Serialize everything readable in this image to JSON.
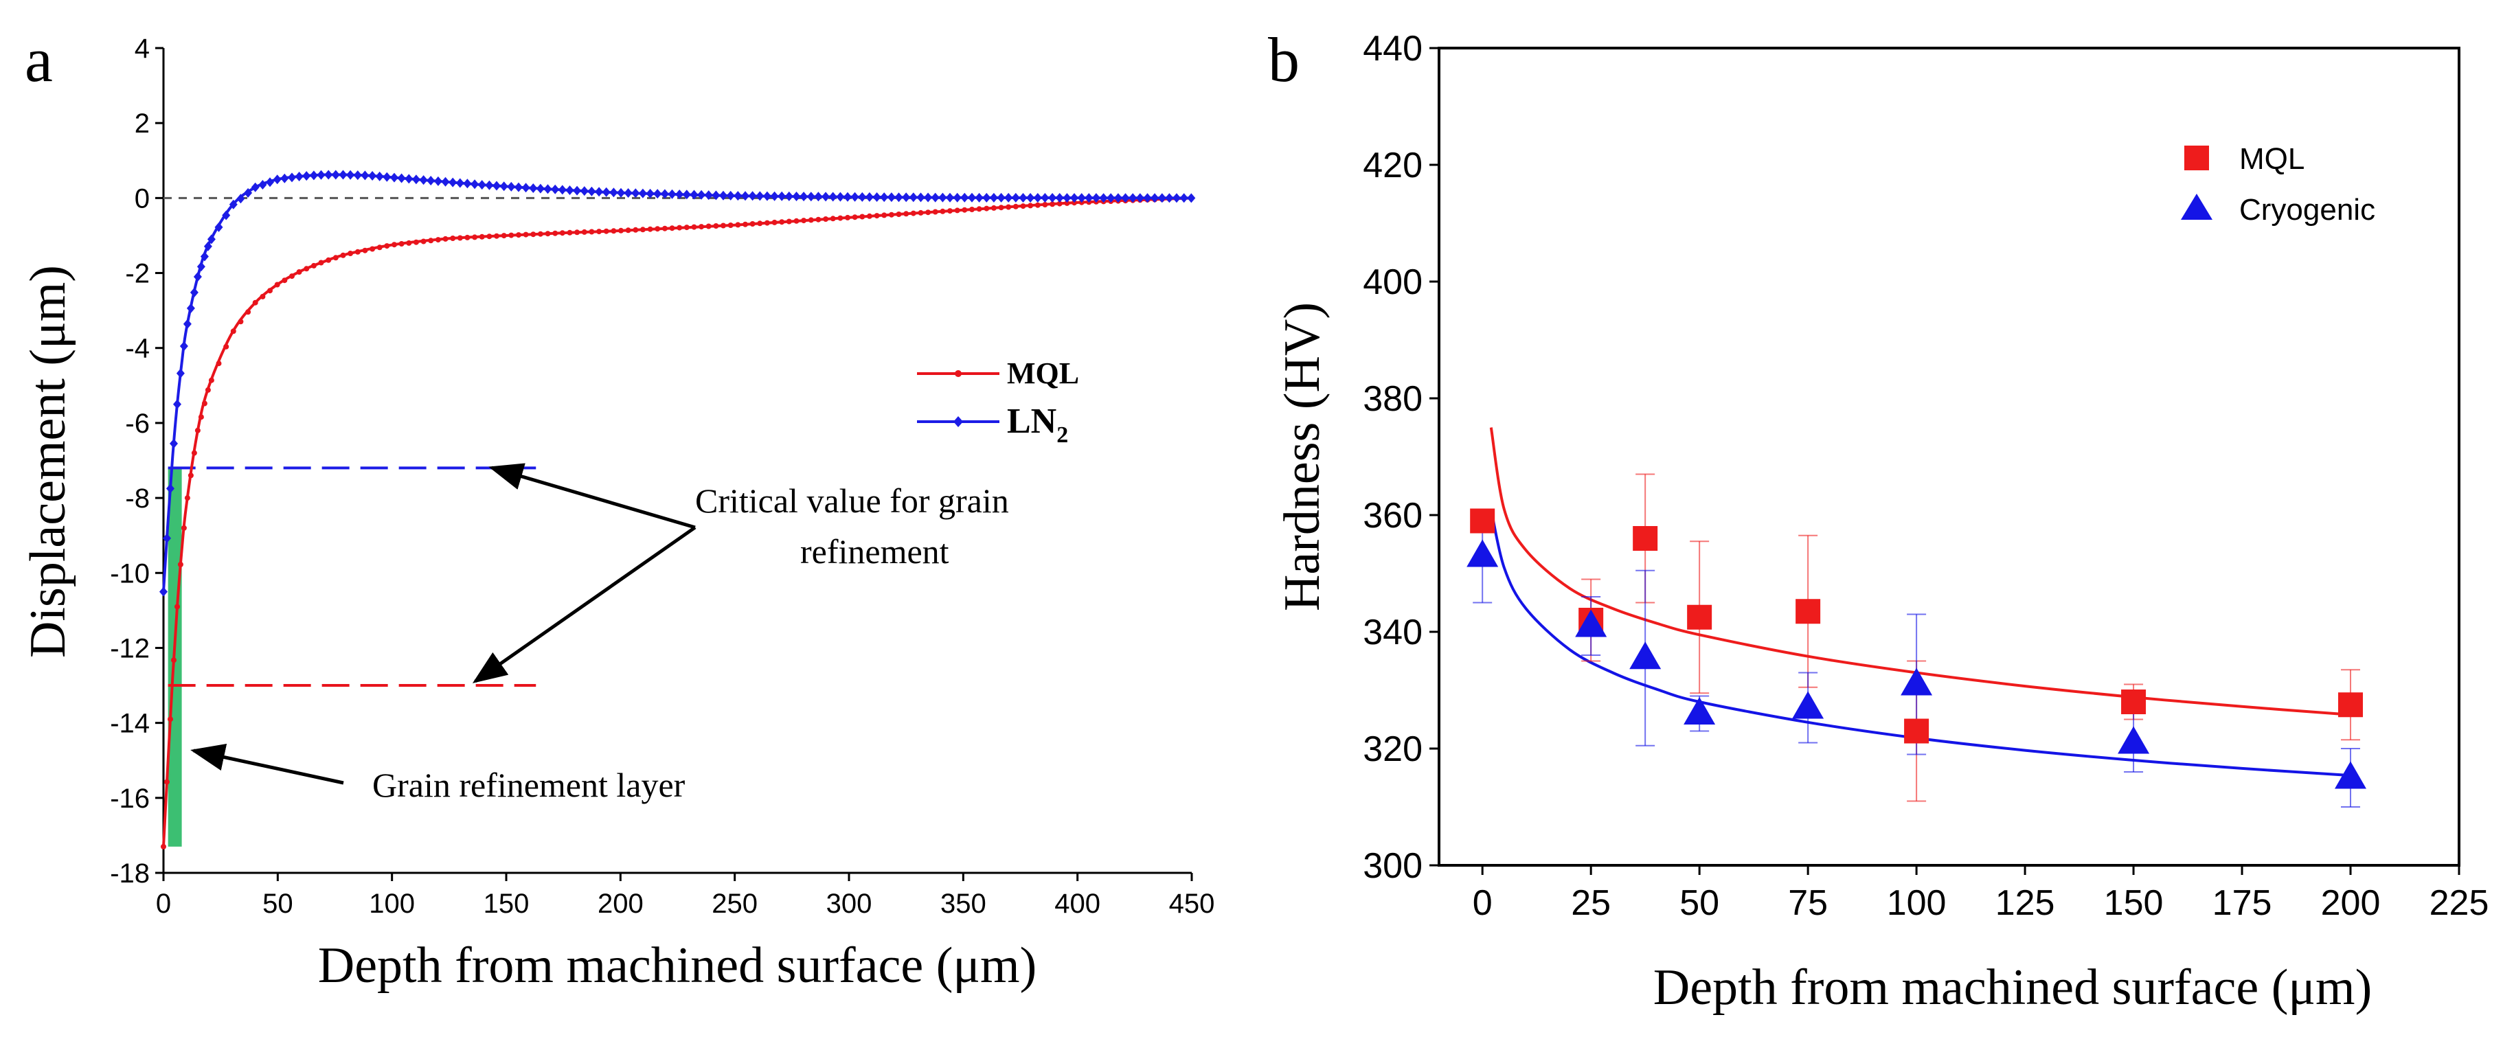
{
  "chart_data": [
    {
      "panel_label": "a",
      "type": "line",
      "title": "",
      "xlabel": "Depth from machined surface (μm)",
      "ylabel": "Displacement (μm)",
      "xlim": [
        0,
        450
      ],
      "ylim": [
        -18,
        4
      ],
      "xticks": [
        "0",
        "50",
        "100",
        "150",
        "200",
        "250",
        "300",
        "350",
        "400",
        "450"
      ],
      "yticks": [
        "4",
        "2",
        "0",
        "-2",
        "-4",
        "-6",
        "-8",
        "-10",
        "-12",
        "-14",
        "-16",
        "-18"
      ],
      "series": [
        {
          "name": "MQL",
          "color": "#e8141c",
          "x": [
            0,
            2,
            4,
            6,
            8,
            10,
            15,
            20,
            30,
            40,
            50,
            60,
            70,
            80,
            100,
            125,
            150,
            175,
            200,
            250,
            300,
            350,
            400,
            450
          ],
          "y": [
            -17.3,
            -15.0,
            -12.8,
            -10.9,
            -9.4,
            -8.2,
            -6.2,
            -5.0,
            -3.6,
            -2.8,
            -2.3,
            -1.95,
            -1.7,
            -1.5,
            -1.25,
            -1.08,
            -1.0,
            -0.93,
            -0.87,
            -0.72,
            -0.52,
            -0.32,
            -0.12,
            0.0
          ]
        },
        {
          "name": "LN2",
          "legend_label": "LN",
          "legend_subscript": "2",
          "color": "#1c1ce6",
          "x": [
            0,
            2,
            4,
            6,
            8,
            10,
            15,
            20,
            30,
            40,
            50,
            60,
            70,
            80,
            90,
            100,
            120,
            140,
            160,
            180,
            200,
            250,
            300,
            350,
            400,
            450
          ],
          "y": [
            -10.5,
            -8.6,
            -6.9,
            -5.5,
            -4.4,
            -3.5,
            -2.1,
            -1.2,
            -0.2,
            0.28,
            0.5,
            0.58,
            0.62,
            0.62,
            0.6,
            0.55,
            0.45,
            0.35,
            0.27,
            0.2,
            0.14,
            0.06,
            0.03,
            0.01,
            0.005,
            0.0
          ]
        }
      ],
      "reference_lines": [
        {
          "name": "zero-line",
          "y": 0,
          "x_range": [
            0,
            450
          ],
          "color": "#555555"
        },
        {
          "name": "ln2-critical-line",
          "y": -7.2,
          "x_range": [
            2,
            163
          ],
          "color": "#1c1ce6"
        },
        {
          "name": "mql-critical-line",
          "y": -13.0,
          "x_range": [
            2,
            163
          ],
          "color": "#e8141c"
        }
      ],
      "shaded_band": {
        "name": "grain-refinement-band",
        "x_range": [
          2,
          8
        ],
        "y_range": [
          -17.3,
          -7.2
        ],
        "color": "#3cbf72"
      },
      "annotations": {
        "critical_line1": "Critical value for grain",
        "critical_line2": "refinement",
        "grain_layer": "Grain refinement layer"
      }
    },
    {
      "panel_label": "b",
      "type": "scatter",
      "title": "",
      "xlabel": "Depth from machined surface (μm)",
      "ylabel": "Hardness (HV)",
      "xlim": [
        -10,
        225
      ],
      "ylim": [
        300,
        440
      ],
      "xticks": [
        "0",
        "25",
        "50",
        "75",
        "100",
        "125",
        "150",
        "175",
        "200",
        "225"
      ],
      "yticks": [
        "300",
        "320",
        "340",
        "360",
        "380",
        "400",
        "420",
        "440"
      ],
      "legend_position": "top-right",
      "series": [
        {
          "name": "MQL",
          "marker": "square",
          "color": "#ee1c1c",
          "x": [
            0,
            25,
            37.5,
            50,
            75,
            100,
            150,
            200
          ],
          "y": [
            359,
            342,
            356,
            342.5,
            343.5,
            323,
            328,
            327.5
          ],
          "err": [
            0,
            7,
            11,
            13,
            13,
            12,
            3,
            6
          ],
          "fit": {
            "x": [
              2,
              5,
              10,
              20,
              30,
              40,
              50,
              75,
              100,
              125,
              150,
              175,
              200
            ],
            "y": [
              375,
              361,
              354,
              347.5,
              344,
              341.5,
              339.5,
              335.8,
              333,
              330.7,
              328.8,
              327.2,
              325.8
            ]
          }
        },
        {
          "name": "Cryogenic",
          "marker": "triangle",
          "color": "#1414e6",
          "x": [
            0,
            25,
            37.5,
            50,
            75,
            100,
            150,
            200
          ],
          "y": [
            353,
            341,
            335.5,
            326,
            327,
            331,
            321,
            315
          ],
          "err": [
            8,
            5,
            15,
            3,
            6,
            12,
            5,
            5
          ],
          "fit": {
            "x": [
              2,
              5,
              10,
              20,
              30,
              40,
              50,
              75,
              100,
              125,
              150,
              175,
              200
            ],
            "y": [
              361,
              351,
              344,
              337,
              333,
              330.2,
              328,
              324.5,
              321.8,
              319.7,
              318,
              316.6,
              315.4
            ]
          }
        }
      ]
    }
  ]
}
